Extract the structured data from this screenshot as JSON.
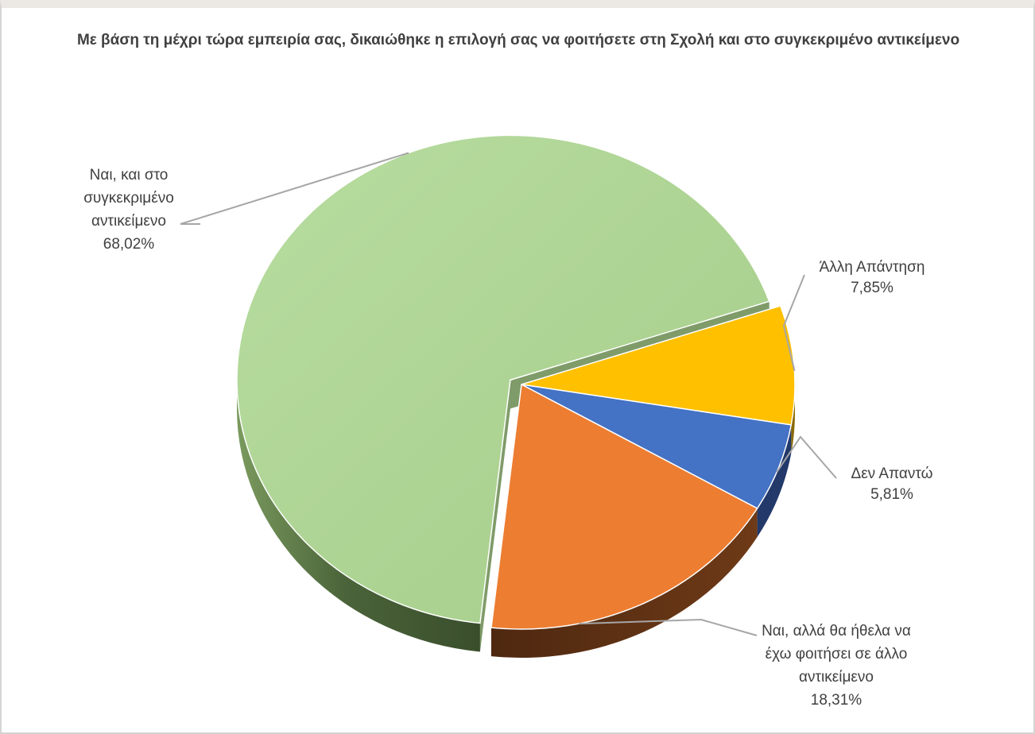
{
  "chart_data": {
    "type": "pie",
    "title": "Με βάση τη μέχρι τώρα εμπειρία σας, δικαιώθηκε η επιλογή σας να φοιτήσετε στη Σχολή και στο συγκεκριμένο αντικείμενο",
    "three_d": true,
    "exploded_slice": "Ναι, και στο συγκεκριμένο αντικείμενο",
    "slices": [
      {
        "category": "Άλλη Απάντηση",
        "value": 7.85,
        "value_label": "7,85%",
        "color": "#FFC000",
        "side_color": "#8A6800"
      },
      {
        "category": "Δεν Απαντώ",
        "value": 5.81,
        "value_label": "5,81%",
        "color": "#4472C4",
        "side_color": "#22396A"
      },
      {
        "category": "Ναι, αλλά θα ήθελα να έχω φοιτήσει σε άλλο αντικείμενο",
        "category_lines": "Ναι, αλλά θα ήθελα να\nέχω φοιτήσει σε άλλο\nαντικείμενο",
        "value": 18.31,
        "value_label": "18,31%",
        "color": "#ED7D31",
        "side_color": "#5E3013"
      },
      {
        "category": "Ναι, και στο συγκεκριμένο αντικείμενο",
        "category_lines": "Ναι, και στο\nσυγκεκριμένο\nαντικείμενο",
        "value": 68.02,
        "value_label": "68,02%",
        "color": "#A9D18E",
        "side_color": "#455A35"
      }
    ]
  }
}
